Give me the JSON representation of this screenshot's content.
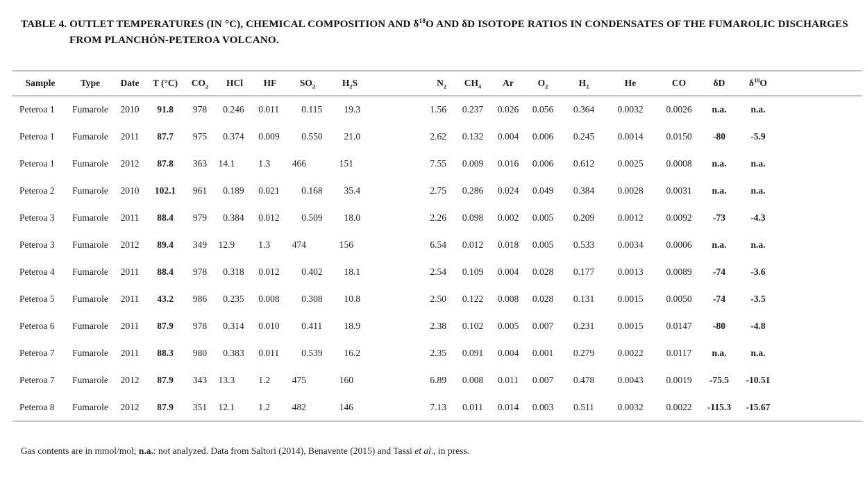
{
  "title": {
    "line1_parts": [
      {
        "t": "TABLE 4. OUTLET TEMPERATURES (IN °C), CHEMICAL COMPOSITION AND δ"
      },
      {
        "t": "18",
        "sup": true
      },
      {
        "t": "O AND δD ISOTOPE RATIOS IN CONDENSATES OF THE FUMAROLIC DISCHARGES"
      }
    ],
    "line2": "FROM PLANCHÓN-PETEROA VOLCANO."
  },
  "table": {
    "columns": [
      {
        "key": "sample",
        "header": [
          {
            "t": "Sample"
          }
        ]
      },
      {
        "key": "type",
        "header": [
          {
            "t": "Type"
          }
        ]
      },
      {
        "key": "date",
        "header": [
          {
            "t": "Date"
          }
        ]
      },
      {
        "key": "t",
        "header": [
          {
            "t": "T (°C)"
          }
        ]
      },
      {
        "key": "co2",
        "header": [
          {
            "t": "CO"
          },
          {
            "t": "2",
            "sub": true
          }
        ]
      },
      {
        "key": "hcl",
        "header": [
          {
            "t": "HCl"
          }
        ]
      },
      {
        "key": "hf",
        "header": [
          {
            "t": "HF"
          }
        ]
      },
      {
        "key": "so2",
        "header": [
          {
            "t": "SO"
          },
          {
            "t": "2",
            "sub": true
          }
        ]
      },
      {
        "key": "h2s",
        "header": [
          {
            "t": "H"
          },
          {
            "t": "2",
            "sub": true
          },
          {
            "t": "S"
          }
        ]
      },
      {
        "key": "n2",
        "header": [
          {
            "t": "N"
          },
          {
            "t": "2",
            "sub": true
          }
        ]
      },
      {
        "key": "ch4",
        "header": [
          {
            "t": "CH"
          },
          {
            "t": "4",
            "sub": true
          }
        ]
      },
      {
        "key": "ar",
        "header": [
          {
            "t": "Ar"
          }
        ]
      },
      {
        "key": "o2",
        "header": [
          {
            "t": "O"
          },
          {
            "t": "2",
            "sub": true
          }
        ]
      },
      {
        "key": "h2",
        "header": [
          {
            "t": "H"
          },
          {
            "t": "2",
            "sub": true
          }
        ]
      },
      {
        "key": "he",
        "header": [
          {
            "t": "He"
          }
        ]
      },
      {
        "key": "co",
        "header": [
          {
            "t": "CO"
          }
        ]
      },
      {
        "key": "dd",
        "header": [
          {
            "t": "δD"
          }
        ]
      },
      {
        "key": "d18o",
        "header": [
          {
            "t": "δ"
          },
          {
            "t": "18",
            "sup": true
          },
          {
            "t": "O"
          }
        ]
      }
    ],
    "rows": [
      [
        "Peteroa 1",
        "Fumarole",
        "2010",
        "91.8",
        "978",
        "0.246",
        "0.011",
        "0.115",
        "19.3",
        "1.56",
        "0.237",
        "0.026",
        "0.056",
        "0.364",
        "0.0032",
        "0.0026",
        "n.a.",
        "n.a."
      ],
      [
        "Peteroa 1",
        "Fumarole",
        "2011",
        "87.7",
        "975",
        "0.374",
        "0.009",
        "0.550",
        "21.0",
        "2.62",
        "0.132",
        "0.004",
        "0.006",
        "0.245",
        "0.0014",
        "0.0150",
        "-80",
        "-5.9"
      ],
      [
        "Peteroa 1",
        "Fumarole",
        "2012",
        "87.8",
        "363",
        "14.1",
        "1.3",
        "466",
        "151",
        "7.55",
        "0.009",
        "0.016",
        "0.006",
        "0.612",
        "0.0025",
        "0.0008",
        "n.a.",
        "n.a."
      ],
      [
        "Peteroa 2",
        "Fumarole",
        "2010",
        "102.1",
        "961",
        "0.189",
        "0.021",
        "0.168",
        "35.4",
        "2.75",
        "0.286",
        "0.024",
        "0.049",
        "0.384",
        "0.0028",
        "0.0031",
        "n.a.",
        "n.a."
      ],
      [
        "Peteroa 3",
        "Fumarole",
        "2011",
        "88.4",
        "979",
        "0.384",
        "0.012",
        "0.509",
        "18.0",
        "2.26",
        "0.098",
        "0.002",
        "0.005",
        "0.209",
        "0.0012",
        "0.0092",
        "-73",
        "-4.3"
      ],
      [
        "Peteroa 3",
        "Fumarole",
        "2012",
        "89.4",
        "349",
        "12.9",
        "1.3",
        "474",
        "156",
        "6.54",
        "0.012",
        "0.018",
        "0.005",
        "0.533",
        "0.0034",
        "0.0006",
        "n.a.",
        "n.a."
      ],
      [
        "Peteroa 4",
        "Fumarole",
        "2011",
        "88.4",
        "978",
        "0.318",
        "0.012",
        "0.402",
        "18.1",
        "2.54",
        "0.109",
        "0.004",
        "0.028",
        "0.177",
        "0.0013",
        "0.0089",
        "-74",
        "-3.6"
      ],
      [
        "Peteroa 5",
        "Fumarole",
        "2011",
        "43.2",
        "986",
        "0.235",
        "0.008",
        "0.308",
        "10.8",
        "2.50",
        "0.122",
        "0.008",
        "0.028",
        "0.131",
        "0.0015",
        "0.0050",
        "-74",
        "-3.5"
      ],
      [
        "Peteroa 6",
        "Fumarole",
        "2011",
        "87.9",
        "978",
        "0.314",
        "0.010",
        "0.411",
        "18.9",
        "2.38",
        "0.102",
        "0.005",
        "0.007",
        "0.231",
        "0.0015",
        "0.0147",
        "-80",
        "-4.8"
      ],
      [
        "Peteroa 7",
        "Fumarole",
        "2011",
        "88.3",
        "980",
        "0.383",
        "0.011",
        "0.539",
        "16.2",
        "2.35",
        "0.091",
        "0.004",
        "0.001",
        "0.279",
        "0.0022",
        "0.0117",
        "n.a.",
        "n.a."
      ],
      [
        "Peteroa 7",
        "Fumarole",
        "2012",
        "87.9",
        "343",
        "13.3",
        "1.2",
        "475",
        "160",
        "6.89",
        "0.008",
        "0.011",
        "0.007",
        "0.478",
        "0.0043",
        "0.0019",
        "-75.5",
        "-10.51"
      ],
      [
        "Peteroa 8",
        "Fumarole",
        "2012",
        "87.9",
        "351",
        "12.1",
        "1.2",
        "482",
        "146",
        "7.13",
        "0.011",
        "0.014",
        "0.003",
        "0.511",
        "0.0032",
        "0.0022",
        "-115.3",
        "-15.67"
      ]
    ]
  },
  "footnote_parts": [
    {
      "t": "Gas contents are in mmol/mol; "
    },
    {
      "t": "n.a.",
      "bold": true
    },
    {
      "t": ": not analyzed. Data from Saltori (2014), Benavente (2015) and Tassi "
    },
    {
      "t": "et al",
      "italic": true
    },
    {
      "t": "., in press."
    }
  ]
}
